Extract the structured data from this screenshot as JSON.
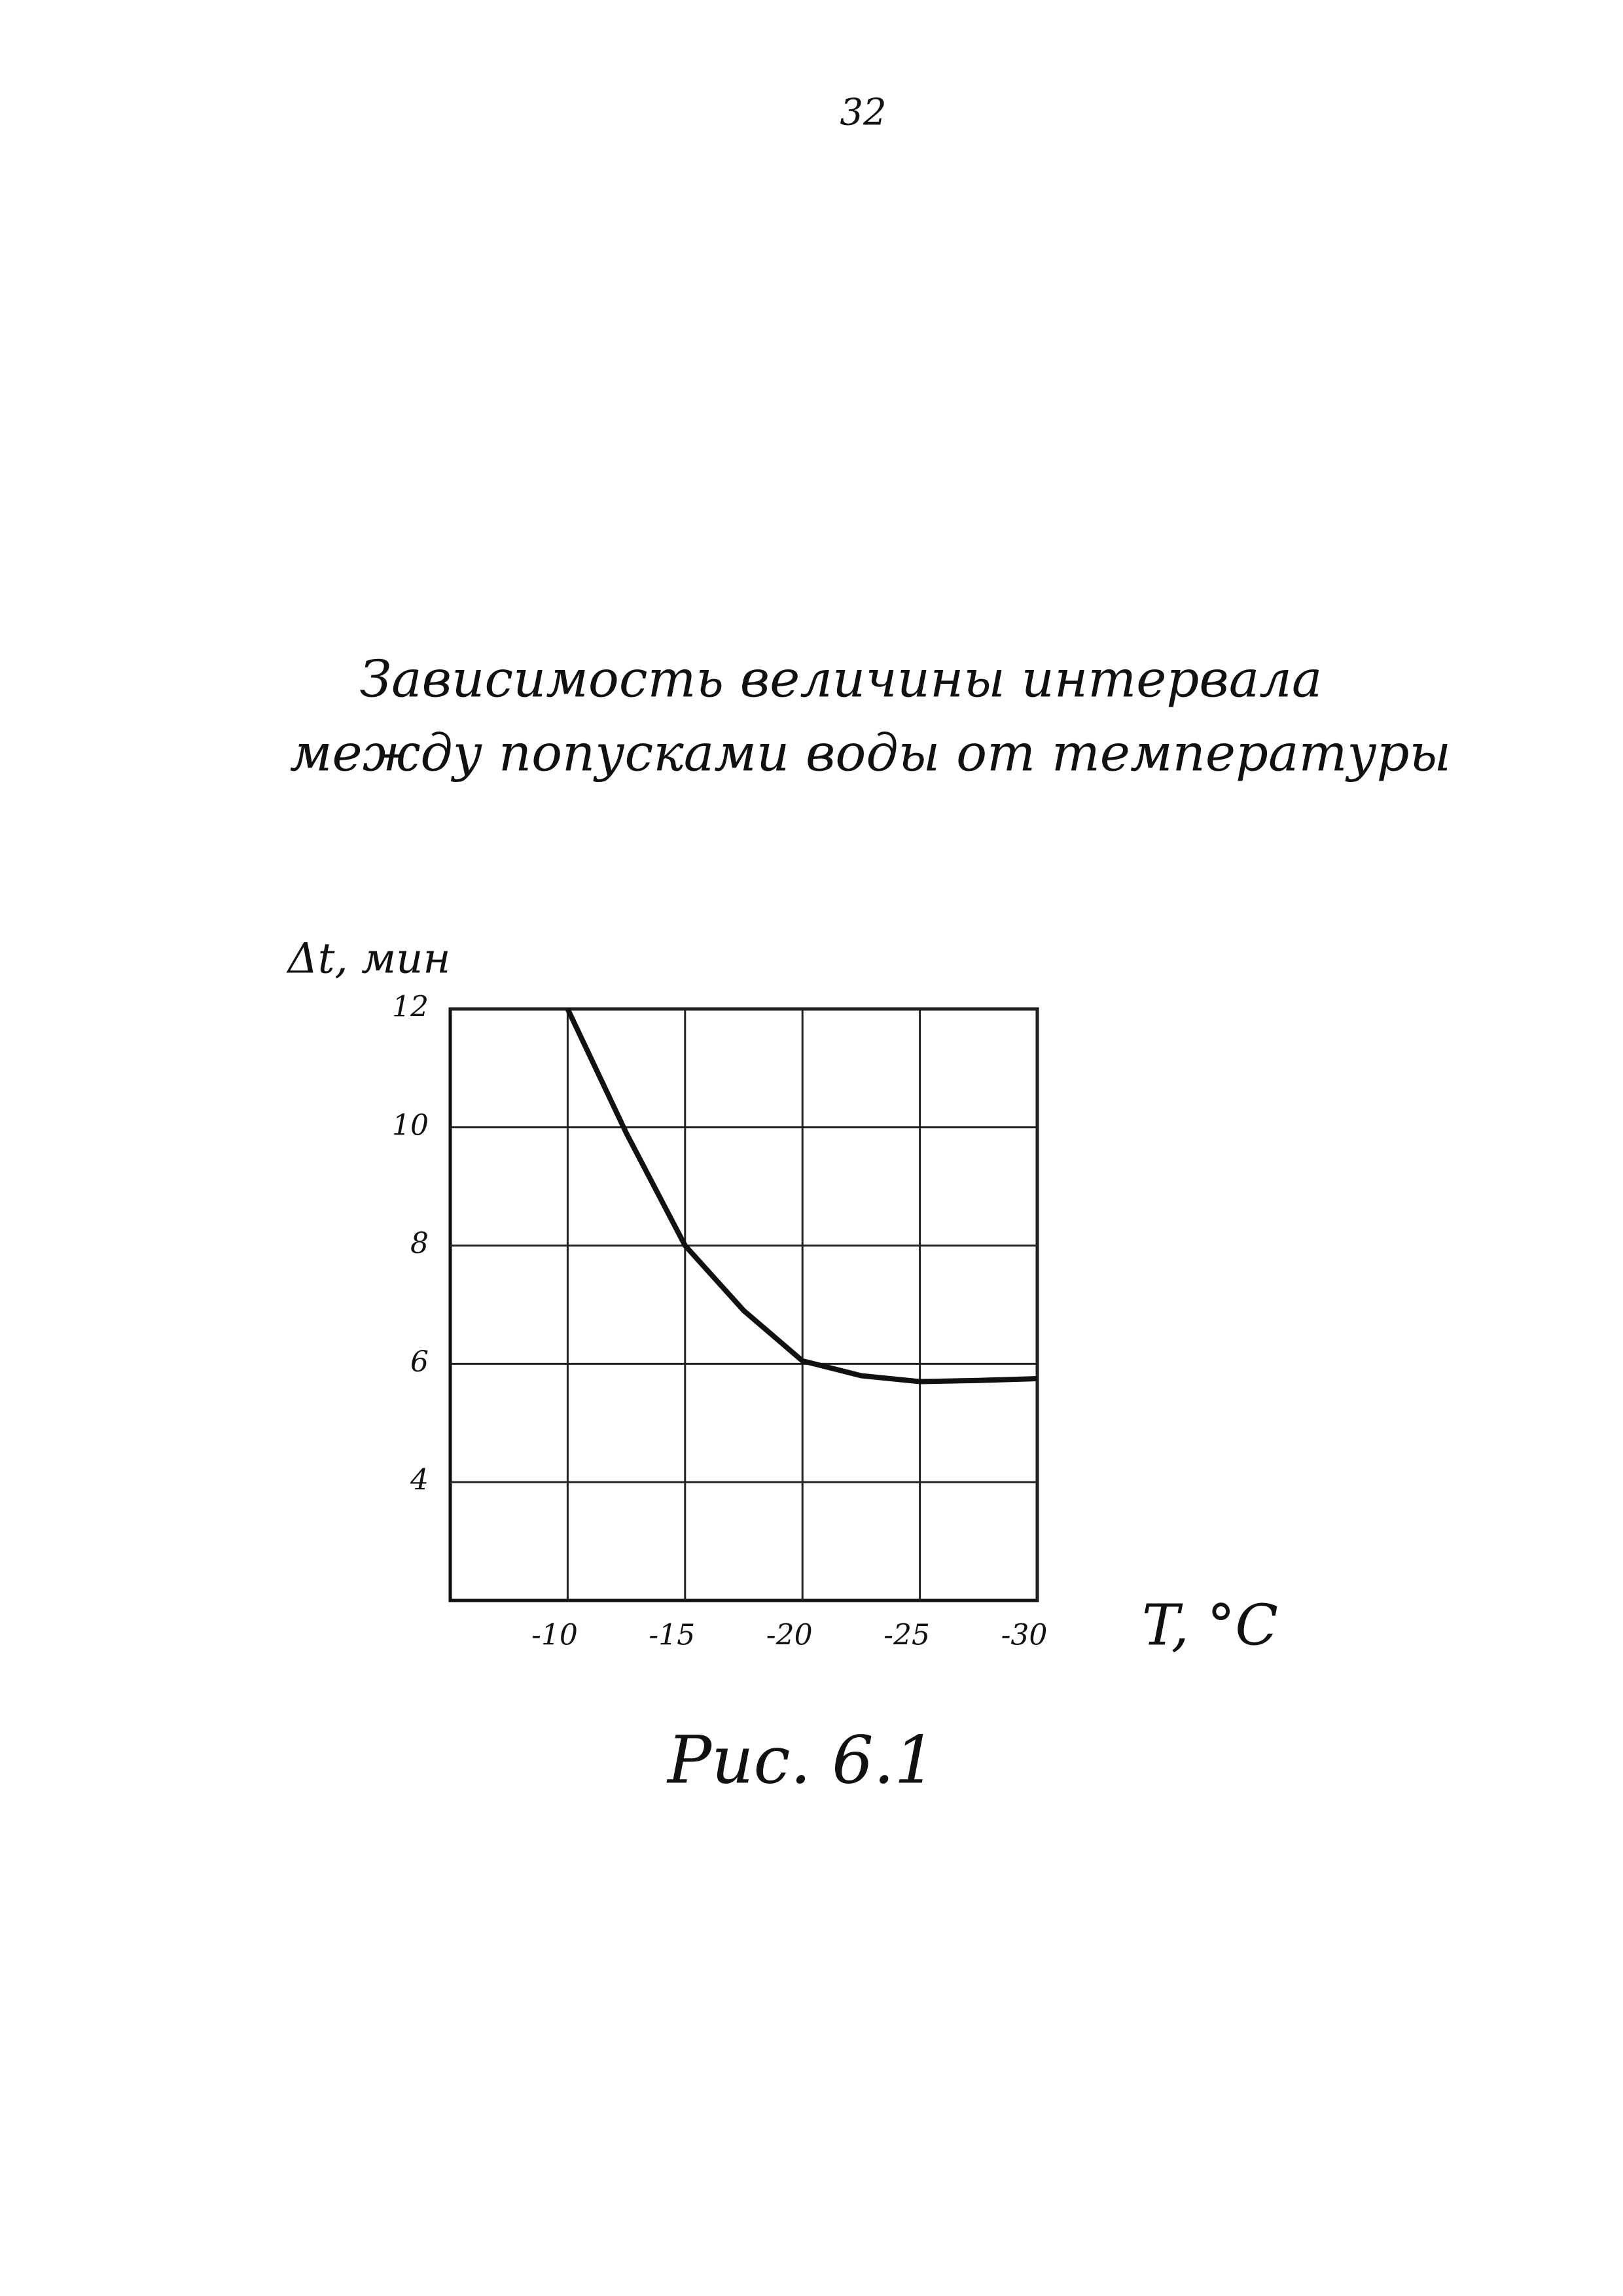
{
  "page_number": "32",
  "caption": "Рис. 6.1",
  "chart_data": {
    "type": "line",
    "title": [
      "Зависимость величины интервала",
      "между попусками воды от температуры"
    ],
    "y_label": "Δt, мин",
    "x_label": "T, °C",
    "x": [
      -10,
      -12.5,
      -15,
      -17.5,
      -20,
      -22.5,
      -25,
      -27.5,
      -30
    ],
    "series": [
      {
        "color": "#111111",
        "values": [
          12,
          9.9,
          8,
          6.9,
          6.05,
          5.8,
          5.7,
          5.72,
          5.75
        ]
      }
    ],
    "xlim": [
      -5,
      -30
    ],
    "xticks": [
      -10,
      -15,
      -20,
      -25,
      -30
    ],
    "ylim": [
      2,
      12
    ],
    "yticks": [
      4,
      6,
      8,
      10,
      12
    ],
    "grid": true
  }
}
